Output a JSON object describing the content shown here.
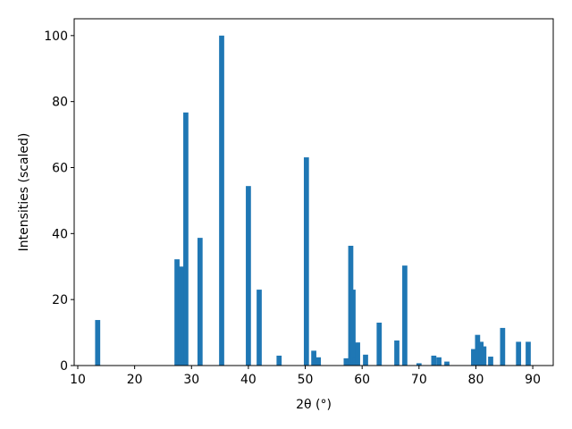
{
  "chart_data": {
    "type": "bar",
    "color": "#1f77b4",
    "x": [
      13.5,
      27.45,
      28.2,
      29.0,
      31.5,
      35.3,
      40.0,
      41.9,
      45.4,
      50.2,
      51.5,
      52.3,
      57.2,
      58.0,
      58.4,
      58.7,
      59.2,
      60.6,
      63.0,
      66.1,
      67.5,
      70.0,
      72.6,
      73.5,
      74.9,
      79.6,
      80.3,
      80.9,
      81.4,
      82.6,
      84.7,
      87.5,
      89.2
    ],
    "values": [
      13.8,
      32.2,
      30.0,
      76.7,
      38.7,
      100,
      54.4,
      23.0,
      3.0,
      63.1,
      4.5,
      2.5,
      2.2,
      36.3,
      23.0,
      2.5,
      7.0,
      3.3,
      13.0,
      7.6,
      30.3,
      0.7,
      3.0,
      2.5,
      1.2,
      5.0,
      9.3,
      7.2,
      5.8,
      2.7,
      11.4,
      7.2,
      7.2
    ],
    "xlabel": "2θ (°)",
    "ylabel": "Intensities (scaled)",
    "xlim": [
      9.37,
      93.6
    ],
    "ylim": [
      0,
      105.1
    ],
    "xticks": [
      10,
      20,
      30,
      40,
      50,
      60,
      70,
      80,
      90
    ],
    "yticks": [
      0,
      20,
      40,
      60,
      80,
      100
    ],
    "grid": false
  }
}
